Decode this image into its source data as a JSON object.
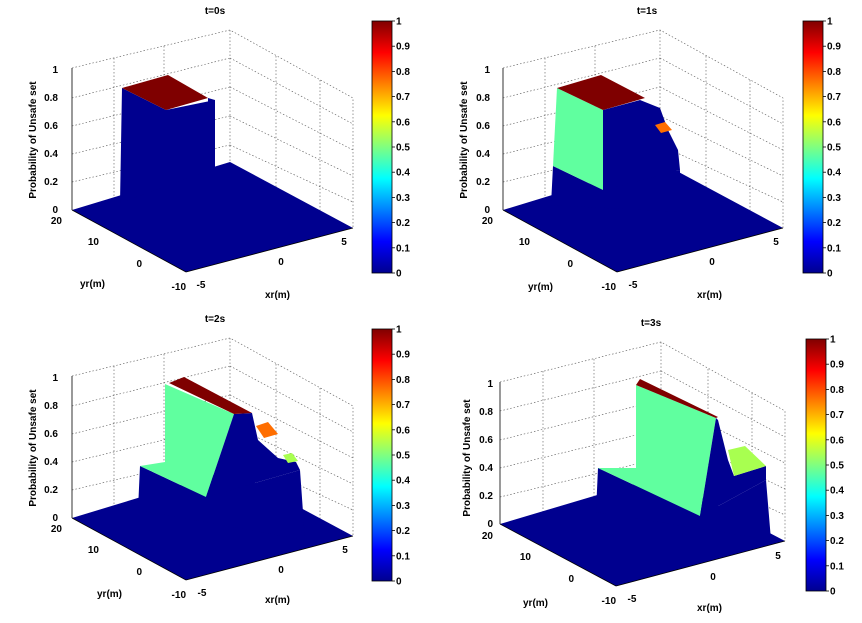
{
  "colors": {
    "dark_red": "#7f0000",
    "blue": "#00008f",
    "top_blue": "#0000b4",
    "light_green": "#60ff9f",
    "orange": "#ff6e00",
    "lime": "#a8ff50"
  },
  "shared": {
    "zlabel": "Probability of Unsafe set",
    "xlabel": "xr(m)",
    "ylabel": "yr(m)",
    "zticks": [
      "0",
      "0.2",
      "0.4",
      "0.6",
      "0.8",
      "1"
    ],
    "xticks": [
      "-5",
      "0",
      "5"
    ],
    "yticks": [
      "20",
      "10",
      "0",
      "-10"
    ],
    "colorbar_ticks": [
      "0",
      "0.1",
      "0.2",
      "0.3",
      "0.4",
      "0.5",
      "0.6",
      "0.7",
      "0.8",
      "0.9",
      "1"
    ]
  },
  "chart_data": [
    {
      "type": "surface",
      "title": "t=0s",
      "z_range": [
        0,
        1
      ],
      "xlim": [
        -5,
        5
      ],
      "ylim": [
        -10,
        20
      ],
      "colorbar": [
        0,
        1
      ],
      "grid": true,
      "peak_probability": 1.0,
      "step_levels": []
    },
    {
      "type": "surface",
      "title": "t=1s",
      "z_range": [
        0,
        1
      ],
      "xlim": [
        -5,
        5
      ],
      "ylim": [
        -10,
        20
      ],
      "colorbar": [
        0,
        1
      ],
      "grid": true,
      "peak_probability": 1.0,
      "step_levels": [
        0.5,
        0.75
      ]
    },
    {
      "type": "surface",
      "title": "t=2s",
      "z_range": [
        0,
        1
      ],
      "xlim": [
        -5,
        5
      ],
      "ylim": [
        -10,
        20
      ],
      "colorbar": [
        0,
        1
      ],
      "grid": true,
      "peak_probability": 1.0,
      "step_levels": [
        0.5,
        0.75,
        0.55
      ]
    },
    {
      "type": "surface",
      "title": "t=3s",
      "z_range": [
        0,
        1
      ],
      "xlim": [
        -5,
        5
      ],
      "ylim": [
        -10,
        20
      ],
      "colorbar": [
        0,
        1
      ],
      "grid": true,
      "peak_probability": 1.0,
      "step_levels": [
        0.5,
        0.6
      ]
    }
  ]
}
